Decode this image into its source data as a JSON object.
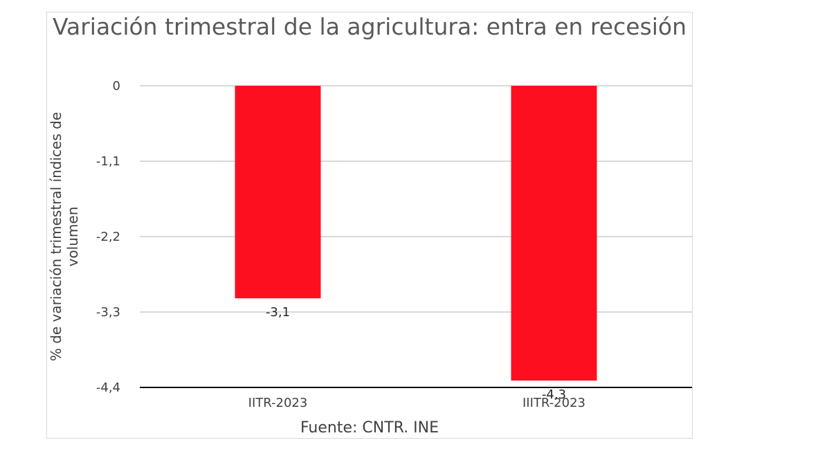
{
  "chart_data": {
    "type": "bar",
    "title": "Variación trimestral de la agricultura: entra en recesión",
    "ylabel": "% de variación trimestral índices de volumen",
    "xlabel": "",
    "source": "Fuente: CNTR. INE",
    "categories": [
      "IITR-2023",
      "IIITR-2023"
    ],
    "values": [
      -3.1,
      -4.3
    ],
    "value_labels": [
      "-3,1",
      "-4,3"
    ],
    "yticks": [
      "0",
      "-1,1",
      "-2,2",
      "-3,3",
      "-4,4"
    ],
    "ytick_values": [
      0,
      -1.1,
      -2.2,
      -3.3,
      -4.4
    ],
    "ylim": [
      -4.4,
      0
    ],
    "grid": true,
    "bar_color": "#fe0f20",
    "grid_color": "#d9d9d9",
    "axis_color": "#000000"
  }
}
